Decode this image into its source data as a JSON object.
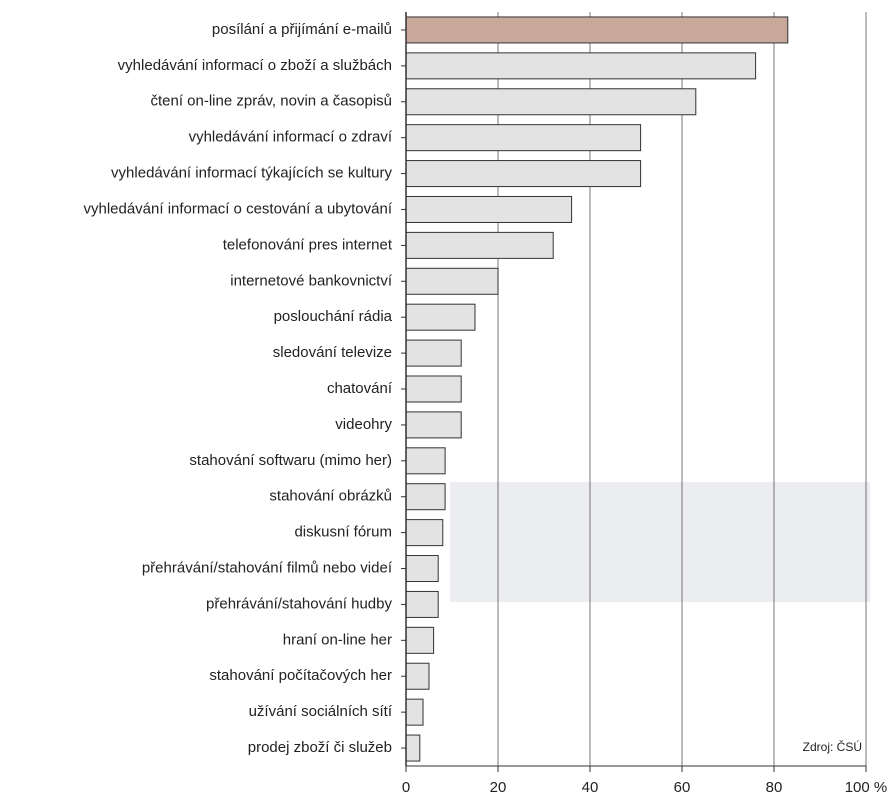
{
  "chart_data": {
    "type": "hbar",
    "categories": [
      "posílání a přijímání e-mailů",
      "vyhledávání informací o zboží a službách",
      "čtení on-line zpráv, novin a časopisů",
      "vyhledávání informací o zdraví",
      "vyhledávání informací týkajících se kultury",
      "vyhledávání informací o cestování a ubytování",
      "telefonování pres internet",
      "internetové bankovnictví",
      "poslouchání rádia",
      "sledování televize",
      "chatování",
      "videohry",
      "stahování softwaru (mimo her)",
      "stahování obrázků",
      "diskusní fórum",
      "přehrávání/stahování filmů nebo videí",
      "přehrávání/stahování hudby",
      "hraní on-line her",
      "stahování počítačových her",
      "užívání sociálních sítí",
      "prodej zboží či služeb"
    ],
    "values": [
      83,
      76,
      63,
      51,
      51,
      36,
      32,
      20,
      15,
      12,
      12,
      12,
      8.5,
      8.5,
      8,
      7,
      7,
      6,
      5,
      3.7,
      3
    ],
    "bar_colors": [
      "#c9a89b",
      "#e3e3e3",
      "#e3e3e3",
      "#e3e3e3",
      "#e3e3e3",
      "#e3e3e3",
      "#e3e3e3",
      "#e3e3e3",
      "#e3e3e3",
      "#e3e3e3",
      "#e3e3e3",
      "#e3e3e3",
      "#e3e3e3",
      "#e3e3e3",
      "#e3e3e3",
      "#e3e3e3",
      "#e3e3e3",
      "#e3e3e3",
      "#e3e3e3",
      "#e3e3e3",
      "#e3e3e3"
    ],
    "xlim": [
      0,
      100
    ],
    "xticks": [
      0,
      20,
      40,
      60,
      80,
      {
        "value": 100,
        "label": "100 %"
      }
    ],
    "grid": true,
    "source": "Zdroj: ČSÚ"
  }
}
